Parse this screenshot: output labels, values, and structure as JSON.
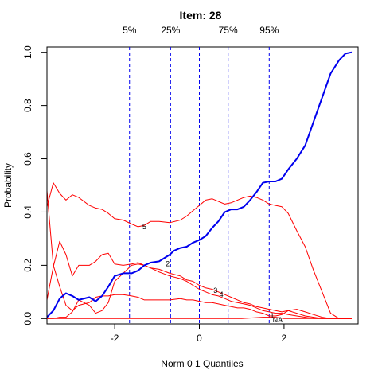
{
  "chart_data": {
    "type": "line",
    "title": "Item:  28",
    "xlabel": "Norm 0 1 Quantiles",
    "ylabel": "Probability",
    "xlim": [
      -3.6,
      3.75
    ],
    "ylim": [
      -0.02,
      1.02
    ],
    "x_ticks": [
      -2,
      0,
      2
    ],
    "x_tick_labels": [
      "-2",
      "0",
      "2"
    ],
    "y_ticks": [
      0.0,
      0.2,
      0.4,
      0.6,
      0.8,
      1.0
    ],
    "y_tick_labels": [
      "0.0",
      "0.2",
      "0.4",
      "0.6",
      "0.8",
      "1.0"
    ],
    "grid": false,
    "percentiles": [
      {
        "label": "5%",
        "x": -1.65
      },
      {
        "label": "25%",
        "x": -0.68
      },
      {
        "label": "75%",
        "x": 0.68
      },
      {
        "label": "95%",
        "x": 1.65
      }
    ],
    "zero_line_x": 0,
    "colors": {
      "key": "#0000ee",
      "distractor": "#ff0000",
      "percentile": "#0000ee"
    },
    "series": [
      {
        "name": "4",
        "kind": "correct",
        "x": [
          -3.6,
          -3.45,
          -3.3,
          -3.15,
          -3.0,
          -2.85,
          -2.6,
          -2.45,
          -2.3,
          -2.15,
          -2.0,
          -1.8,
          -1.6,
          -1.45,
          -1.3,
          -1.15,
          -0.95,
          -0.7,
          -0.6,
          -0.45,
          -0.3,
          -0.15,
          0.0,
          0.15,
          0.3,
          0.45,
          0.6,
          0.75,
          0.9,
          1.05,
          1.2,
          1.35,
          1.5,
          1.65,
          1.8,
          1.95,
          2.1,
          2.3,
          2.5,
          2.7,
          2.9,
          3.1,
          3.3,
          3.45,
          3.6
        ],
        "y": [
          0.005,
          0.03,
          0.075,
          0.095,
          0.085,
          0.07,
          0.08,
          0.065,
          0.085,
          0.12,
          0.16,
          0.17,
          0.17,
          0.18,
          0.2,
          0.21,
          0.215,
          0.24,
          0.255,
          0.265,
          0.27,
          0.285,
          0.295,
          0.31,
          0.34,
          0.365,
          0.4,
          0.41,
          0.41,
          0.42,
          0.445,
          0.475,
          0.51,
          0.515,
          0.515,
          0.525,
          0.56,
          0.6,
          0.65,
          0.74,
          0.83,
          0.92,
          0.97,
          0.995,
          1.0
        ],
        "label_at": [
          0.52,
          0.09
        ]
      },
      {
        "name": "5",
        "kind": "distractor",
        "x": [
          -3.6,
          -3.45,
          -3.3,
          -3.15,
          -3.0,
          -2.85,
          -2.6,
          -2.45,
          -2.3,
          -2.15,
          -2.0,
          -1.8,
          -1.6,
          -1.45,
          -1.3,
          -1.15,
          -0.95,
          -0.7,
          -0.45,
          -0.3,
          -0.15,
          0.0,
          0.15,
          0.3,
          0.45,
          0.6,
          0.75,
          0.9,
          1.05,
          1.2,
          1.35,
          1.5,
          1.65,
          1.8,
          1.95,
          2.1,
          2.3,
          2.5,
          2.7,
          2.9,
          3.1,
          3.3,
          3.45,
          3.6
        ],
        "y": [
          0.42,
          0.51,
          0.47,
          0.445,
          0.465,
          0.455,
          0.425,
          0.415,
          0.41,
          0.395,
          0.375,
          0.37,
          0.355,
          0.345,
          0.35,
          0.365,
          0.365,
          0.36,
          0.37,
          0.385,
          0.405,
          0.425,
          0.445,
          0.45,
          0.44,
          0.43,
          0.435,
          0.445,
          0.455,
          0.46,
          0.455,
          0.445,
          0.43,
          0.425,
          0.42,
          0.395,
          0.33,
          0.27,
          0.18,
          0.1,
          0.02,
          0.0,
          0.0,
          0.0
        ],
        "label_at": [
          -1.3,
          0.345
        ]
      },
      {
        "name": "2",
        "kind": "distractor",
        "x": [
          -3.6,
          -3.45,
          -3.3,
          -3.15,
          -3.0,
          -2.85,
          -2.6,
          -2.45,
          -2.3,
          -2.15,
          -2.0,
          -1.8,
          -1.6,
          -1.45,
          -1.3,
          -1.15,
          -0.95,
          -0.7,
          -0.45,
          -0.3,
          -0.15,
          0.0,
          0.15,
          0.3,
          0.45,
          0.6,
          0.75,
          0.9,
          1.05,
          1.2,
          1.35,
          1.5,
          1.65,
          1.8,
          1.95,
          2.1,
          2.3,
          2.5,
          2.7,
          2.9,
          3.1,
          3.3,
          3.45,
          3.6
        ],
        "y": [
          0.07,
          0.195,
          0.29,
          0.24,
          0.16,
          0.2,
          0.2,
          0.215,
          0.24,
          0.245,
          0.205,
          0.2,
          0.205,
          0.21,
          0.2,
          0.19,
          0.175,
          0.16,
          0.15,
          0.14,
          0.125,
          0.11,
          0.1,
          0.09,
          0.085,
          0.075,
          0.065,
          0.06,
          0.055,
          0.05,
          0.04,
          0.03,
          0.025,
          0.02,
          0.02,
          0.015,
          0.01,
          0.005,
          0.0,
          0.0,
          0.0,
          0.0,
          0.0,
          0.0
        ],
        "label_at": [
          -0.75,
          0.205
        ]
      },
      {
        "name": "3",
        "kind": "distractor",
        "x": [
          -3.6,
          -3.45,
          -3.3,
          -3.15,
          -3.0,
          -2.85,
          -2.6,
          -2.45,
          -2.3,
          -2.15,
          -2.0,
          -1.8,
          -1.6,
          -1.45,
          -1.3,
          -1.15,
          -0.95,
          -0.7,
          -0.45,
          -0.3,
          -0.15,
          0.0,
          0.15,
          0.3,
          0.45,
          0.6,
          0.75,
          0.9,
          1.05,
          1.2,
          1.35,
          1.5,
          1.65,
          1.8,
          1.95,
          2.1,
          2.3,
          2.5,
          2.7,
          2.9,
          3.1,
          3.3,
          3.45,
          3.6
        ],
        "y": [
          0.0,
          0.0,
          0.005,
          0.005,
          0.025,
          0.07,
          0.05,
          0.02,
          0.03,
          0.06,
          0.14,
          0.17,
          0.2,
          0.205,
          0.2,
          0.19,
          0.185,
          0.17,
          0.16,
          0.145,
          0.14,
          0.125,
          0.115,
          0.11,
          0.1,
          0.09,
          0.08,
          0.07,
          0.06,
          0.055,
          0.045,
          0.04,
          0.035,
          0.03,
          0.025,
          0.03,
          0.02,
          0.01,
          0.005,
          0.0,
          0.0,
          0.0,
          0.0,
          0.0
        ],
        "label_at": [
          0.38,
          0.105
        ]
      },
      {
        "name": "1",
        "kind": "distractor",
        "x": [
          -3.6,
          -3.45,
          -3.3,
          -3.15,
          -3.0,
          -2.85,
          -2.6,
          -2.45,
          -2.3,
          -2.15,
          -2.0,
          -1.8,
          -1.6,
          -1.45,
          -1.3,
          -1.15,
          -0.95,
          -0.7,
          -0.45,
          -0.3,
          -0.15,
          0.0,
          0.15,
          0.3,
          0.45,
          0.6,
          0.75,
          0.9,
          1.05,
          1.2,
          1.35,
          1.5,
          1.65,
          1.8,
          1.95,
          2.1,
          2.3,
          2.5,
          2.7,
          2.9,
          3.1,
          3.3,
          3.45,
          3.6
        ],
        "y": [
          0.48,
          0.2,
          0.12,
          0.05,
          0.03,
          0.05,
          0.06,
          0.08,
          0.085,
          0.085,
          0.09,
          0.09,
          0.085,
          0.08,
          0.07,
          0.07,
          0.07,
          0.07,
          0.075,
          0.07,
          0.07,
          0.065,
          0.06,
          0.06,
          0.055,
          0.05,
          0.045,
          0.04,
          0.04,
          0.035,
          0.025,
          0.02,
          0.01,
          0.01,
          0.015,
          0.03,
          0.035,
          0.025,
          0.015,
          0.005,
          0.0,
          0.0,
          0.0,
          0.0
        ],
        "label_at": [
          1.72,
          0.01
        ]
      },
      {
        "name": "NA",
        "kind": "distractor",
        "x": [
          -3.6,
          -3.0,
          -2.0,
          -1.0,
          0.0,
          1.0,
          1.5,
          1.8,
          2.0,
          2.3,
          2.6,
          3.0,
          3.6
        ],
        "y": [
          0.0,
          0.0,
          0.0,
          0.0,
          0.0,
          0.0,
          0.005,
          0.005,
          0.0,
          0.0,
          0.0,
          0.0,
          0.0
        ],
        "label_at": [
          1.85,
          -0.005
        ]
      }
    ]
  }
}
